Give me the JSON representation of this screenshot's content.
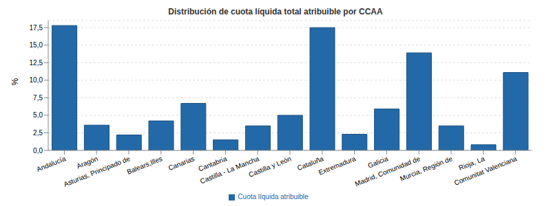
{
  "chart_data": {
    "type": "bar",
    "title": "Distribución de cuota líquida total atribuible por CCAA",
    "y_label": "%",
    "categories": [
      "Andalucía",
      "Aragón",
      "Asturias, Principado de",
      "Balears,Illes",
      "Canarias",
      "Cantabria",
      "Castilla - La Mancha",
      "Castilla y León",
      "Cataluña",
      "Extremadura",
      "Galicia",
      "Madrid, Comunidad de",
      "Murcia, Región de",
      "Rioja, La",
      "Comunitat Valenciana"
    ],
    "series": [
      {
        "name": "Cuota líquida atribuible",
        "color": "#2369a8",
        "values": [
          17.8,
          3.6,
          2.2,
          4.2,
          6.7,
          1.5,
          3.5,
          5.0,
          17.5,
          2.3,
          5.9,
          13.9,
          3.5,
          0.8,
          11.1
        ]
      }
    ],
    "ylim": [
      0,
      18.5
    ],
    "yticks": [
      {
        "value": 0,
        "label": "0,0"
      },
      {
        "value": 2.5,
        "label": "2,5"
      },
      {
        "value": 5,
        "label": "5,0"
      },
      {
        "value": 7.5,
        "label": "7,5"
      },
      {
        "value": 10,
        "label": "10,0"
      },
      {
        "value": 12.5,
        "label": "12,5"
      },
      {
        "value": 15,
        "label": "15,0"
      },
      {
        "value": 17.5,
        "label": "17,5"
      }
    ],
    "grid": true,
    "legend": "bottom"
  }
}
